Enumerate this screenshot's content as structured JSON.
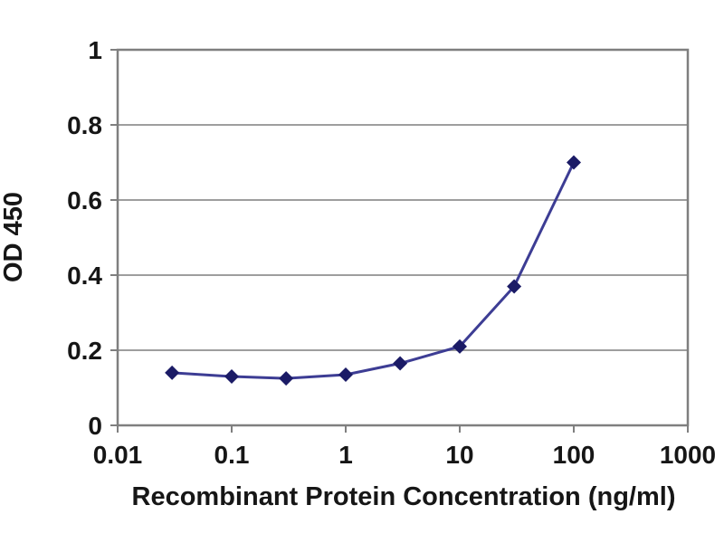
{
  "chart_data": {
    "type": "line",
    "title": "",
    "xlabel": "Recombinant Protein Concentration (ng/ml)",
    "ylabel": "OD 450",
    "x_scale": "log",
    "xlim": [
      0.01,
      1000
    ],
    "ylim": [
      0,
      1
    ],
    "grid": "horizontal",
    "legend": "none",
    "x_ticks": [
      0.01,
      0.1,
      1,
      10,
      100,
      1000
    ],
    "x_tick_labels": [
      "0.01",
      "0.1",
      "1",
      "10",
      "100",
      "1000"
    ],
    "y_ticks": [
      0,
      0.2,
      0.4,
      0.6,
      0.8,
      1
    ],
    "y_tick_labels": [
      "0",
      "0.2",
      "0.4",
      "0.6",
      "0.8",
      "1"
    ],
    "series": [
      {
        "marker": "diamond",
        "x": [
          0.03,
          0.1,
          0.3,
          1,
          3,
          10,
          30,
          100
        ],
        "y": [
          0.14,
          0.13,
          0.125,
          0.135,
          0.165,
          0.21,
          0.37,
          0.7
        ]
      }
    ],
    "colors": {
      "line": "#3d3d94",
      "marker": "#1b1b66",
      "grid": "#9e9e9e",
      "frame": "#7f7f7f",
      "text": "#161616",
      "background": "#ffffff"
    }
  }
}
